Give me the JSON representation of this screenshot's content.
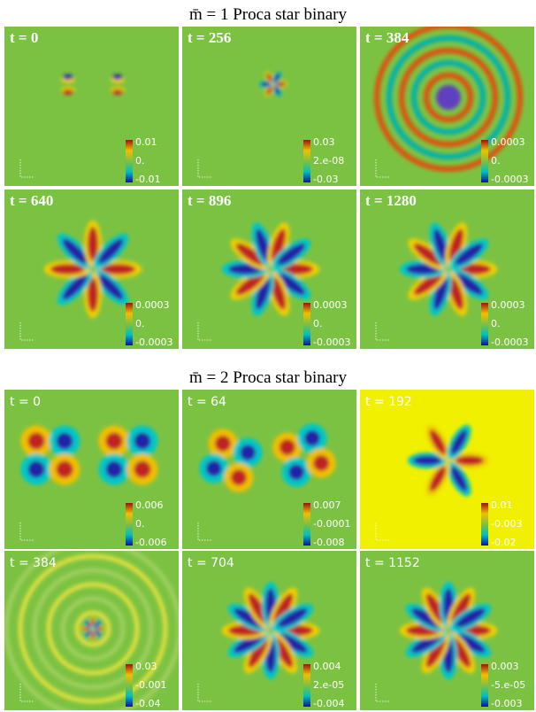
{
  "sections": [
    {
      "title": "m̄ = 1 Proca star binary",
      "panels": [
        {
          "time": "t = 0",
          "colorbar": [
            "0.01",
            "0.",
            "-0.01"
          ]
        },
        {
          "time": "t = 256",
          "colorbar": [
            "0.03",
            "2.e-08",
            "-0.03"
          ]
        },
        {
          "time": "t = 384",
          "colorbar": [
            "0.0003",
            "0.",
            "-0.0003"
          ]
        },
        {
          "time": "t = 640",
          "colorbar": [
            "0.0003",
            "0.",
            "-0.0003"
          ]
        },
        {
          "time": "t = 896",
          "colorbar": [
            "0.0003",
            "0.",
            "-0.0003"
          ]
        },
        {
          "time": "t = 1280",
          "colorbar": [
            "0.0003",
            "0.",
            "-0.0003"
          ]
        }
      ]
    },
    {
      "title": "m̄ = 2 Proca star binary",
      "panels": [
        {
          "time": "t = 0",
          "colorbar": [
            "0.006",
            "0.",
            "-0.006"
          ]
        },
        {
          "time": "t = 64",
          "colorbar": [
            "0.007",
            "-0.0001",
            "-0.008"
          ]
        },
        {
          "time": "t = 192",
          "colorbar": [
            "0.01",
            "-0.003",
            "-0.02"
          ]
        },
        {
          "time": "t = 384",
          "colorbar": [
            "0.03",
            "-0.001",
            "-0.04"
          ]
        },
        {
          "time": "t = 704",
          "colorbar": [
            "0.004",
            "2.e-05",
            "-0.004"
          ]
        },
        {
          "time": "t = 1152",
          "colorbar": [
            "0.003",
            "-5.e-05",
            "-0.003"
          ]
        }
      ]
    }
  ]
}
